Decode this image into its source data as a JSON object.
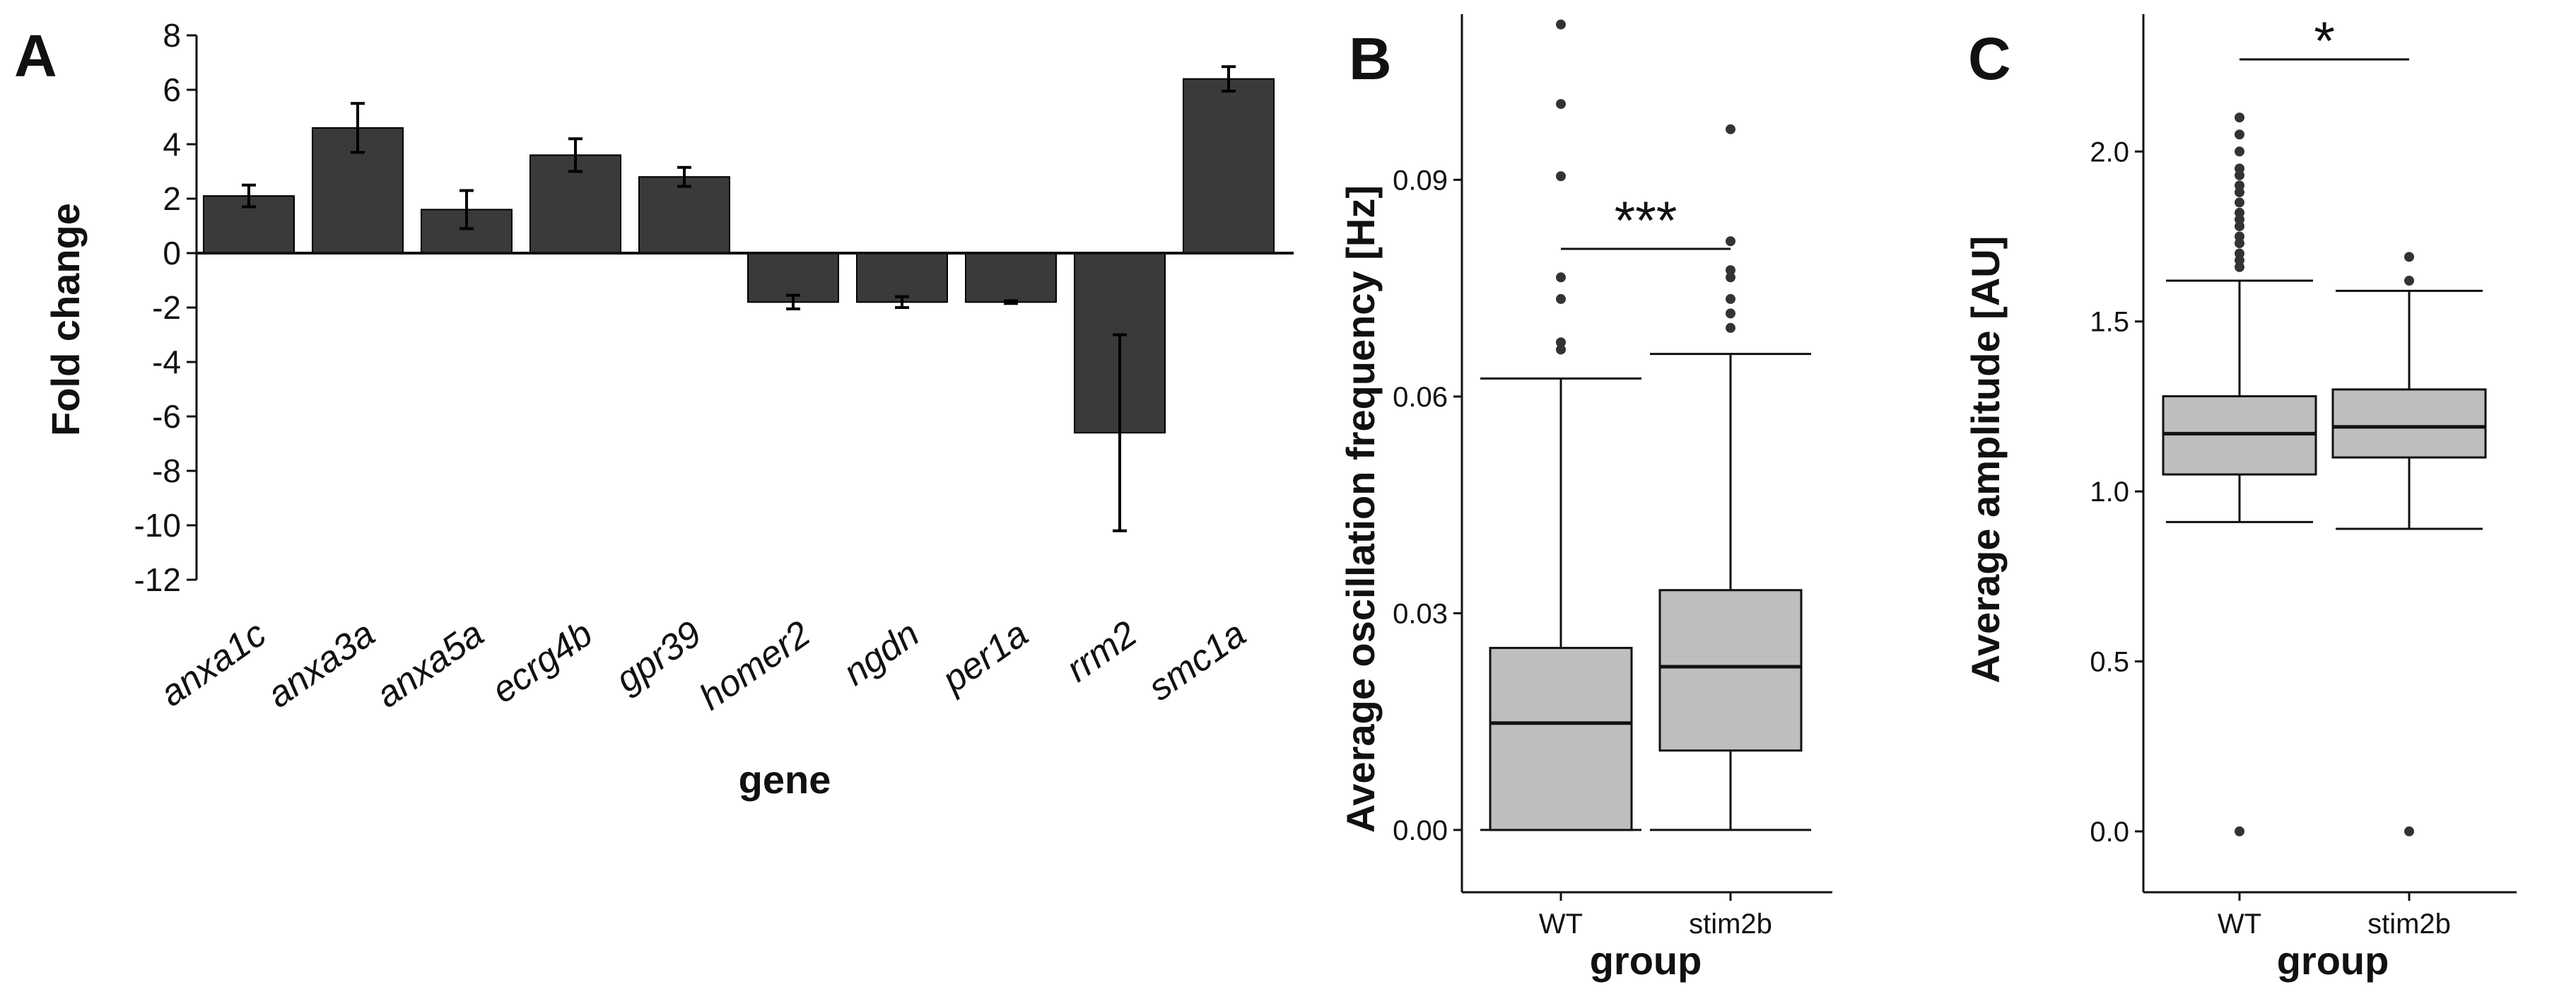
{
  "chart_data": [
    {
      "panel": "A",
      "type": "bar",
      "xlabel": "gene",
      "ylabel": "Fold change",
      "ylim": [
        -12,
        8
      ],
      "yticks": [
        "8",
        "6",
        "4",
        "2",
        "0",
        "-2",
        "-4",
        "-6",
        "-8",
        "-10",
        "-12"
      ],
      "categories": [
        "anxa1c",
        "anxa3a",
        "anxa5a",
        "ecrg4b",
        "gpr39",
        "homer2",
        "ngdn",
        "per1a",
        "rrm2",
        "smc1a"
      ],
      "values": [
        2.1,
        4.6,
        1.6,
        3.6,
        2.8,
        -1.8,
        -1.8,
        -1.8,
        -6.6,
        6.4
      ],
      "errors": [
        0.4,
        0.9,
        0.7,
        0.6,
        0.35,
        0.25,
        0.2,
        0.05,
        3.6,
        0.45
      ]
    },
    {
      "panel": "B",
      "type": "box",
      "xlabel": "group",
      "ylabel": "Average oscillation frequency [Hz]",
      "ylim": [
        -0.005,
        0.11
      ],
      "yticks": [
        "0.00",
        "0.03",
        "0.06",
        "0.09"
      ],
      "categories": [
        "WT",
        "stim2b"
      ],
      "boxes": [
        {
          "name": "WT",
          "whisker_low": 0.0,
          "q1": 0.0,
          "median": 0.0148,
          "q3": 0.0252,
          "whisker_high": 0.0625,
          "outliers": [
            0.1115,
            0.1005,
            0.0905,
            0.0765,
            0.0735,
            0.0675,
            0.0665
          ]
        },
        {
          "name": "stim2b",
          "whisker_low": 0.0,
          "q1": 0.011,
          "median": 0.0226,
          "q3": 0.0332,
          "whisker_high": 0.0659,
          "outliers": [
            0.097,
            0.0815,
            0.0775,
            0.0765,
            0.0735,
            0.0715,
            0.0695
          ]
        }
      ],
      "annotation": "***"
    },
    {
      "panel": "C",
      "type": "box",
      "xlabel": "group",
      "ylabel": "Average amplitude [AU]",
      "ylim": [
        -0.1,
        2.35
      ],
      "yticks": [
        "0.0",
        "0.5",
        "1.0",
        "1.5",
        "2.0"
      ],
      "categories": [
        "WT",
        "stim2b"
      ],
      "boxes": [
        {
          "name": "WT",
          "whisker_low": 0.91,
          "q1": 1.05,
          "median": 1.17,
          "q3": 1.28,
          "whisker_high": 1.62,
          "outliers": [
            2.1,
            2.05,
            2.0,
            1.95,
            1.93,
            1.9,
            1.88,
            1.85,
            1.82,
            1.8,
            1.78,
            1.75,
            1.73,
            1.7,
            1.68,
            1.66,
            0.0
          ]
        },
        {
          "name": "stim2b",
          "whisker_low": 0.89,
          "q1": 1.1,
          "median": 1.19,
          "q3": 1.3,
          "whisker_high": 1.59,
          "outliers": [
            1.69,
            1.62,
            0.0
          ]
        }
      ],
      "annotation": "*"
    }
  ],
  "colors": {
    "bar_fill": "#3a3a3a",
    "box_fill": "#bebebe",
    "ink": "#111111"
  }
}
